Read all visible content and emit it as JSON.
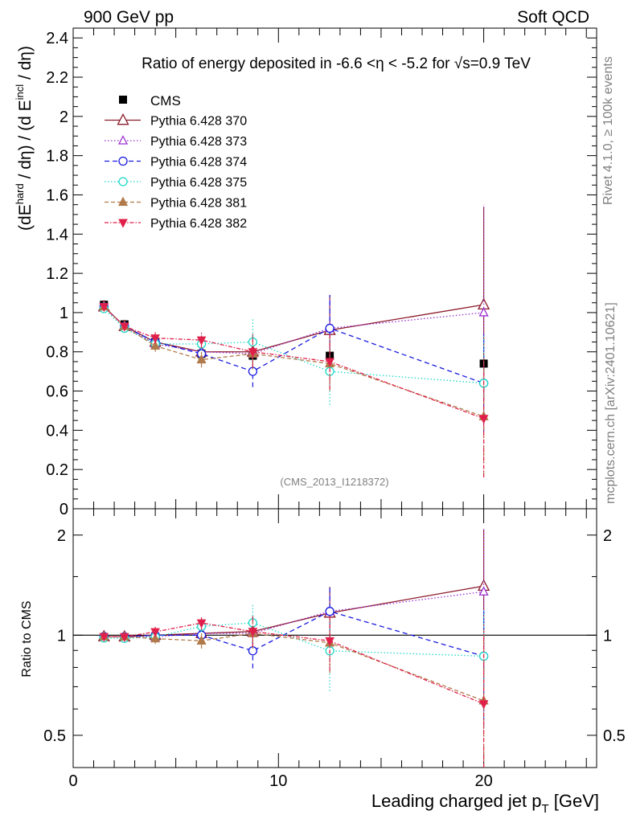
{
  "header": {
    "left": "900 GeV pp",
    "right": "Soft QCD"
  },
  "side_labels": {
    "top": "Rivet 4.1.0, ≥ 100k events",
    "bottom": "mcplots.cern.ch [arXiv:2401.10621]"
  },
  "chart_data": {
    "type": "scatter",
    "title": "Ratio of energy deposited in -6.6 <η < -5.2 for √s=0.9 TeV",
    "watermark": "(CMS_2013_I1218372)",
    "ylabel_parts": {
      "a": "(dE",
      "b": "hard",
      "c": " / dη) / (d E",
      "d": "incl",
      "e": " / dη)"
    },
    "xlabel_parts": {
      "a": "Leading charged jet p",
      "b": "T",
      "c": " [GeV]"
    },
    "ratio_ylabel": "Ratio to CMS",
    "xlim": [
      0,
      25.5
    ],
    "ylim": [
      0,
      2.45
    ],
    "ratio_ylim": [
      0.4,
      2.4
    ],
    "x_ticks": [
      0,
      10,
      20
    ],
    "x_tick_labels": [
      "0",
      "10",
      "20"
    ],
    "y_ticks": [
      0,
      0.2,
      0.4,
      0.6,
      0.8,
      1,
      1.2,
      1.4,
      1.6,
      1.8,
      2,
      2.2,
      2.4
    ],
    "y_tick_labels": [
      "0",
      "0.2",
      "0.4",
      "0.6",
      "0.8",
      "1",
      "1.2",
      "1.4",
      "1.6",
      "1.8",
      "2",
      "2.2",
      "2.4"
    ],
    "ratio_ticks": [
      0.5,
      1,
      2
    ],
    "ratio_tick_labels": [
      "0.5",
      "1",
      "2"
    ],
    "ratio_left_tick_labels": [
      "0.5",
      "1",
      "2"
    ],
    "ratio_right_tick_labels": [
      "0.5",
      "1",
      "2"
    ],
    "x": [
      1.5,
      2.5,
      4.0,
      6.25,
      8.75,
      12.5,
      20.0
    ],
    "data": {
      "name": "CMS",
      "values": [
        1.04,
        0.94,
        0.85,
        0.79,
        0.78,
        0.78,
        0.74
      ],
      "errors": [
        0.01,
        0.01,
        0.01,
        0.02,
        0.02,
        0.03,
        0.04
      ],
      "color": "#000000"
    },
    "series": [
      {
        "name": "Pythia 6.428 370",
        "color": "#8b1a2a",
        "marker": "triangle-open",
        "dash": "",
        "marker_size": 6.5,
        "values": [
          1.03,
          0.93,
          0.85,
          0.8,
          0.8,
          0.91,
          1.04
        ],
        "errors": [
          0.02,
          0.02,
          0.03,
          0.05,
          0.09,
          0.18,
          0.5
        ]
      },
      {
        "name": "Pythia 6.428 373",
        "color": "#9b30d0",
        "marker": "triangle-open",
        "dash": "1.5,2.5",
        "marker_size": 5,
        "values": [
          1.03,
          0.93,
          0.84,
          0.8,
          0.79,
          0.92,
          1.0
        ],
        "errors": [
          0.02,
          0.02,
          0.03,
          0.05,
          0.09,
          0.17,
          0.55
        ]
      },
      {
        "name": "Pythia 6.428 374",
        "color": "#1a1ae0",
        "marker": "circle-open",
        "dash": "6,4",
        "marker_size": 5,
        "values": [
          1.03,
          0.93,
          0.85,
          0.79,
          0.7,
          0.92,
          0.64
        ],
        "errors": [
          0.02,
          0.02,
          0.03,
          0.05,
          0.08,
          0.17,
          0.25
        ]
      },
      {
        "name": "Pythia 6.428 375",
        "color": "#20d8c8",
        "marker": "circle-open",
        "dash": "1.5,2.5",
        "marker_size": 5,
        "values": [
          1.02,
          0.92,
          0.84,
          0.84,
          0.85,
          0.7,
          0.64
        ],
        "errors": [
          0.02,
          0.02,
          0.03,
          0.05,
          0.12,
          0.17,
          0.24
        ]
      },
      {
        "name": "Pythia 6.428 381",
        "color": "#b07a4a",
        "marker": "triangle-filled",
        "dash": "5,3",
        "marker_size": 5,
        "values": [
          1.03,
          0.93,
          0.83,
          0.76,
          0.79,
          0.74,
          0.47
        ],
        "errors": [
          0.02,
          0.02,
          0.03,
          0.04,
          0.08,
          0.14,
          0.3
        ]
      },
      {
        "name": "Pythia 6.428 382",
        "color": "#e0204a",
        "marker": "triangle-down-filled",
        "dash": "5,2,1.5,2",
        "marker_size": 5,
        "values": [
          1.03,
          0.93,
          0.87,
          0.86,
          0.8,
          0.75,
          0.46
        ],
        "errors": [
          0.02,
          0.02,
          0.03,
          0.04,
          0.08,
          0.14,
          0.3
        ]
      }
    ]
  }
}
